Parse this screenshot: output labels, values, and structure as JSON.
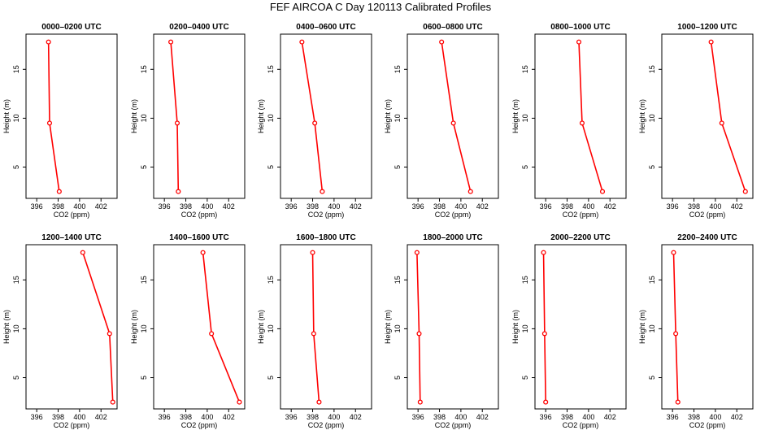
{
  "title": "FEF AIRCOA C  Day 120113  Calibrated Profiles",
  "chart_data": [
    {
      "type": "line",
      "title": "0000–0200 UTC",
      "xlabel": "CO2 (ppm)",
      "ylabel": "Height (m)",
      "xlim": [
        395,
        403.5
      ],
      "ylim": [
        1.8,
        18.6
      ],
      "xticks": [
        396,
        398,
        400,
        402
      ],
      "yticks": [
        5,
        10,
        15
      ],
      "heights": [
        2.5,
        9.5,
        17.8
      ],
      "co2": [
        398.1,
        397.2,
        397.1
      ],
      "color": "#ff0000"
    },
    {
      "type": "line",
      "title": "0200–0400 UTC",
      "xlabel": "CO2 (ppm)",
      "ylabel": "Height (m)",
      "xlim": [
        395,
        403.5
      ],
      "ylim": [
        1.8,
        18.6
      ],
      "xticks": [
        396,
        398,
        400,
        402
      ],
      "yticks": [
        5,
        10,
        15
      ],
      "heights": [
        2.5,
        9.5,
        17.8
      ],
      "co2": [
        397.3,
        397.2,
        396.6
      ],
      "color": "#ff0000"
    },
    {
      "type": "line",
      "title": "0400–0600 UTC",
      "xlabel": "CO2 (ppm)",
      "ylabel": "Height (m)",
      "xlim": [
        395,
        403.5
      ],
      "ylim": [
        1.8,
        18.6
      ],
      "xticks": [
        396,
        398,
        400,
        402
      ],
      "yticks": [
        5,
        10,
        15
      ],
      "heights": [
        2.5,
        9.5,
        17.8
      ],
      "co2": [
        398.9,
        398.2,
        397.0
      ],
      "color": "#ff0000"
    },
    {
      "type": "line",
      "title": "0600–0800 UTC",
      "xlabel": "CO2 (ppm)",
      "ylabel": "Height (m)",
      "xlim": [
        395,
        403.5
      ],
      "ylim": [
        1.8,
        18.6
      ],
      "xticks": [
        396,
        398,
        400,
        402
      ],
      "yticks": [
        5,
        10,
        15
      ],
      "heights": [
        2.5,
        9.5,
        17.8
      ],
      "co2": [
        400.9,
        399.3,
        398.2
      ],
      "color": "#ff0000"
    },
    {
      "type": "line",
      "title": "0800–1000 UTC",
      "xlabel": "CO2 (ppm)",
      "ylabel": "Height (m)",
      "xlim": [
        395,
        403.5
      ],
      "ylim": [
        1.8,
        18.6
      ],
      "xticks": [
        396,
        398,
        400,
        402
      ],
      "yticks": [
        5,
        10,
        15
      ],
      "heights": [
        2.5,
        9.5,
        17.8
      ],
      "co2": [
        401.3,
        399.4,
        399.1
      ],
      "color": "#ff0000"
    },
    {
      "type": "line",
      "title": "1000–1200 UTC",
      "xlabel": "CO2 (ppm)",
      "ylabel": "Height (m)",
      "xlim": [
        395,
        403.5
      ],
      "ylim": [
        1.8,
        18.6
      ],
      "xticks": [
        396,
        398,
        400,
        402
      ],
      "yticks": [
        5,
        10,
        15
      ],
      "heights": [
        2.5,
        9.5,
        17.8
      ],
      "co2": [
        402.8,
        400.6,
        399.6
      ],
      "color": "#ff0000"
    },
    {
      "type": "line",
      "title": "1200–1400 UTC",
      "xlabel": "CO2 (ppm)",
      "ylabel": "Height (m)",
      "xlim": [
        395,
        403.5
      ],
      "ylim": [
        1.8,
        18.6
      ],
      "xticks": [
        396,
        398,
        400,
        402
      ],
      "yticks": [
        5,
        10,
        15
      ],
      "heights": [
        2.5,
        9.5,
        17.8
      ],
      "co2": [
        403.1,
        402.8,
        400.3
      ],
      "color": "#ff0000"
    },
    {
      "type": "line",
      "title": "1400–1600 UTC",
      "xlabel": "CO2 (ppm)",
      "ylabel": "Height (m)",
      "xlim": [
        395,
        403.5
      ],
      "ylim": [
        1.8,
        18.6
      ],
      "xticks": [
        396,
        398,
        400,
        402
      ],
      "yticks": [
        5,
        10,
        15
      ],
      "heights": [
        2.5,
        9.5,
        17.8
      ],
      "co2": [
        403.0,
        400.4,
        399.6
      ],
      "color": "#ff0000"
    },
    {
      "type": "line",
      "title": "1600–1800 UTC",
      "xlabel": "CO2 (ppm)",
      "ylabel": "Height (m)",
      "xlim": [
        395,
        403.5
      ],
      "ylim": [
        1.8,
        18.6
      ],
      "xticks": [
        396,
        398,
        400,
        402
      ],
      "yticks": [
        5,
        10,
        15
      ],
      "heights": [
        2.5,
        9.5,
        17.8
      ],
      "co2": [
        398.6,
        398.1,
        398.0
      ],
      "color": "#ff0000"
    },
    {
      "type": "line",
      "title": "1800–2000 UTC",
      "xlabel": "CO2 (ppm)",
      "ylabel": "Height (m)",
      "xlim": [
        395,
        403.5
      ],
      "ylim": [
        1.8,
        18.6
      ],
      "xticks": [
        396,
        398,
        400,
        402
      ],
      "yticks": [
        5,
        10,
        15
      ],
      "heights": [
        2.5,
        9.5,
        17.8
      ],
      "co2": [
        396.2,
        396.1,
        395.9
      ],
      "color": "#ff0000"
    },
    {
      "type": "line",
      "title": "2000–2200 UTC",
      "xlabel": "CO2 (ppm)",
      "ylabel": "Height (m)",
      "xlim": [
        395,
        403.5
      ],
      "ylim": [
        1.8,
        18.6
      ],
      "xticks": [
        396,
        398,
        400,
        402
      ],
      "yticks": [
        5,
        10,
        15
      ],
      "heights": [
        2.5,
        9.5,
        17.8
      ],
      "co2": [
        396.0,
        395.9,
        395.8
      ],
      "color": "#ff0000"
    },
    {
      "type": "line",
      "title": "2200–2400 UTC",
      "xlabel": "CO2 (ppm)",
      "ylabel": "Height (m)",
      "xlim": [
        395,
        403.5
      ],
      "ylim": [
        1.8,
        18.6
      ],
      "xticks": [
        396,
        398,
        400,
        402
      ],
      "yticks": [
        5,
        10,
        15
      ],
      "heights": [
        2.5,
        9.5,
        17.8
      ],
      "co2": [
        396.5,
        396.3,
        396.1
      ],
      "color": "#ff0000"
    }
  ]
}
